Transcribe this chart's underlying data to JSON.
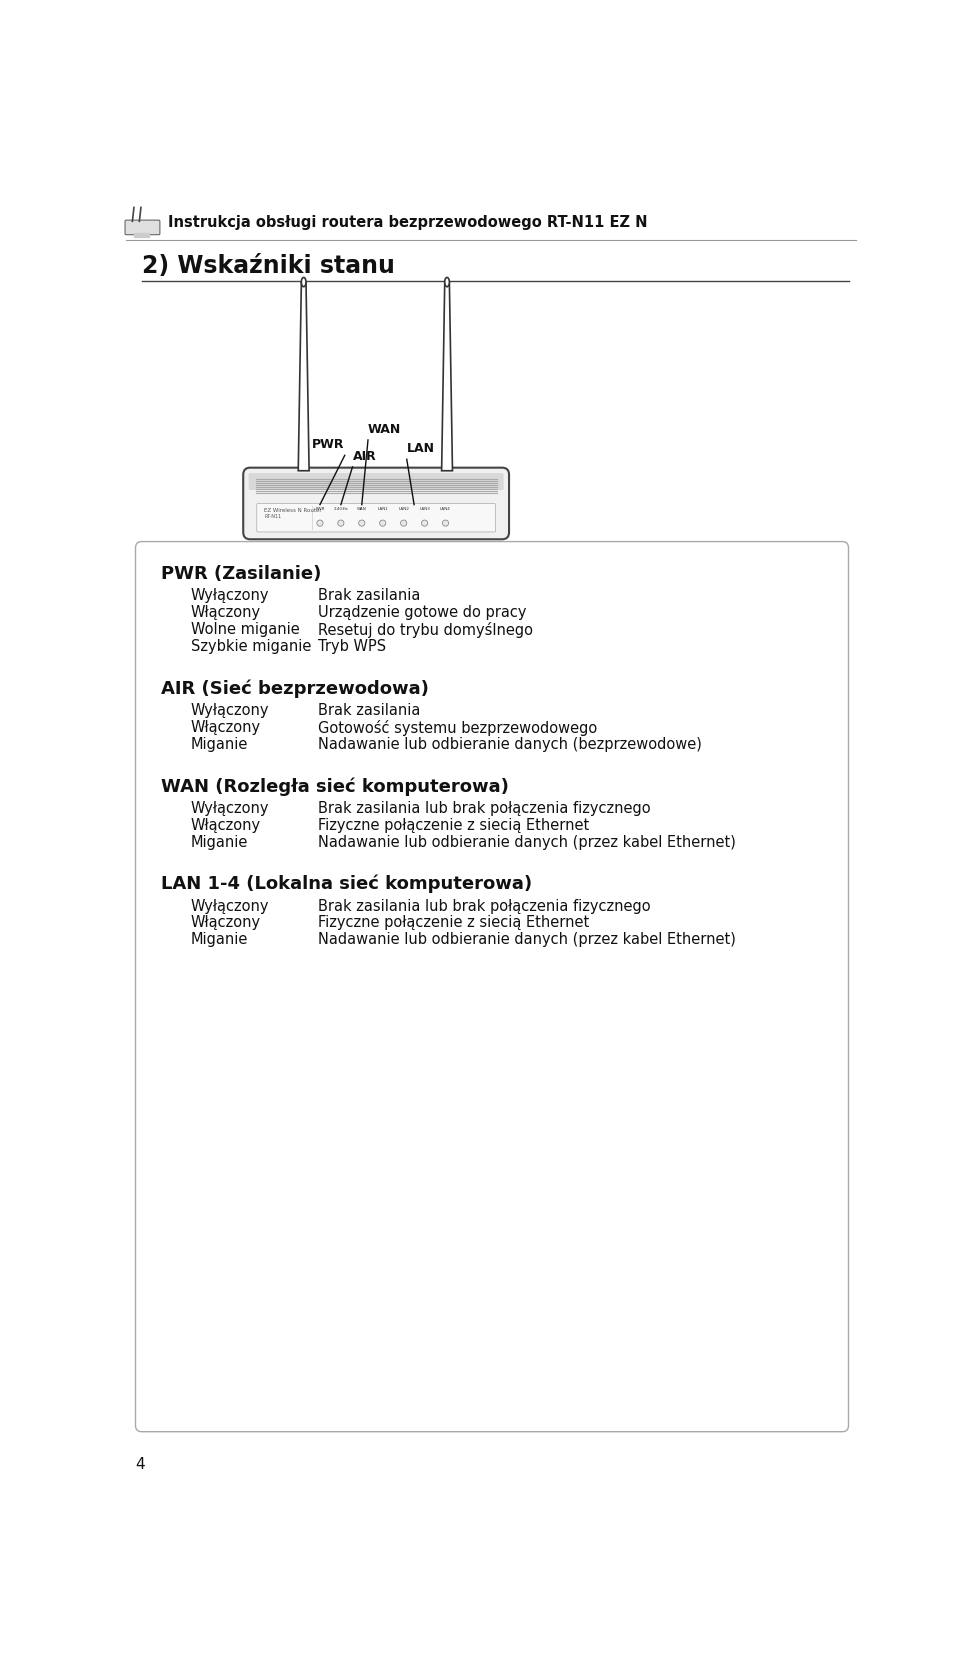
{
  "page_number": "4",
  "header_text": "Instrukcja obsługi routera bezprzewodowego RT-N11 EZ N",
  "section_title": "2) Wskaźniki stanu",
  "bg_color": "#ffffff",
  "sections": [
    {
      "title": "PWR (Zasilanie)",
      "rows": [
        [
          "Wyłączony",
          "Brak zasilania"
        ],
        [
          "Włączony",
          "Urządzenie gotowe do pracy"
        ],
        [
          "Wolne miganie",
          "Resetuj do trybu domyślnego"
        ],
        [
          "Szybkie miganie",
          "Tryb WPS"
        ]
      ]
    },
    {
      "title": "AIR (Sieć bezprzewodowa)",
      "rows": [
        [
          "Wyłączony",
          "Brak zasilania"
        ],
        [
          "Włączony",
          "Gotowość systemu bezprzewodowego"
        ],
        [
          "Miganie",
          "Nadawanie lub odbieranie danych (bezprzewodowe)"
        ]
      ]
    },
    {
      "title": "WAN (Rozległa sieć komputerowa)",
      "rows": [
        [
          "Wyłączony",
          "Brak zasilania lub brak połączenia fizycznego"
        ],
        [
          "Włączony",
          "Fizyczne połączenie z siecią Ethernet"
        ],
        [
          "Miganie",
          "Nadawanie lub odbieranie danych (przez kabel Ethernet)"
        ]
      ]
    },
    {
      "title": "LAN 1-4 (Lokalna sieć komputerowa)",
      "rows": [
        [
          "Wyłączony",
          "Brak zasilania lub brak połączenia fizycznego"
        ],
        [
          "Włączony",
          "Fizyczne połączenie z siecią Ethernet"
        ],
        [
          "Miganie",
          "Nadawanie lub odbieranie danych (przez kabel Ethernet)"
        ]
      ]
    }
  ]
}
